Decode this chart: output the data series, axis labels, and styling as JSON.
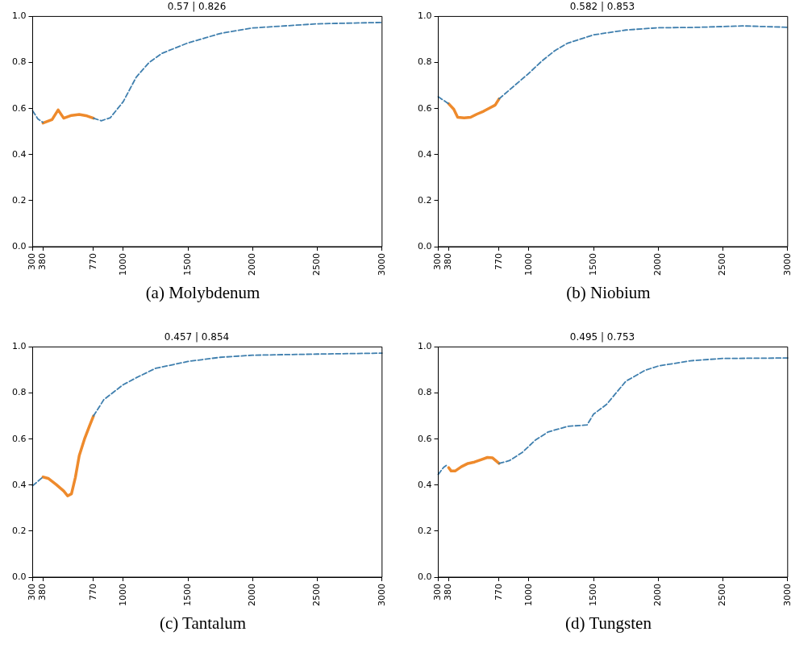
{
  "chart_data": [
    {
      "type": "line",
      "title": "0.57 | 0.826",
      "annotations": [
        "(a) Molybdenum"
      ],
      "xlim": [
        300,
        3000
      ],
      "xticks": [
        300,
        380,
        770,
        1000,
        1500,
        2000,
        2500,
        3000
      ],
      "ylim": [
        0,
        1
      ],
      "yticks": [
        {
          "value": 0,
          "label": "0.0"
        },
        {
          "value": 0.2,
          "label": "0.2"
        },
        {
          "value": 0.4,
          "label": "0.4"
        },
        {
          "value": 0.6,
          "label": "0.6"
        },
        {
          "value": 0.8,
          "label": "0.8"
        },
        {
          "value": 1,
          "label": "1.0"
        }
      ],
      "series": [
        {
          "color": "#3f7fae",
          "line_style": "dashed",
          "x": [
            300,
            340,
            380,
            575,
            770,
            830,
            900,
            1000,
            1100,
            1200,
            1300,
            1500,
            1750,
            2000,
            2500,
            3000
          ],
          "values": [
            0.59,
            0.555,
            0.54,
            null,
            0.558,
            0.547,
            0.56,
            0.63,
            0.736,
            0.8,
            0.84,
            0.885,
            0.926,
            0.95,
            0.968,
            0.974
          ]
        },
        {
          "color": "#ee8a2c",
          "line_style": "solid",
          "x": [
            380,
            450,
            497,
            540,
            600,
            660,
            720,
            770
          ],
          "values": [
            0.537,
            0.552,
            0.594,
            0.558,
            0.57,
            0.574,
            0.568,
            0.558
          ]
        }
      ]
    },
    {
      "type": "line",
      "title": "0.582 | 0.853",
      "annotations": [
        "(b) Niobium"
      ],
      "xlim": [
        300,
        3000
      ],
      "xticks": [
        300,
        380,
        770,
        1000,
        1500,
        2000,
        2500,
        3000
      ],
      "ylim": [
        0,
        1
      ],
      "yticks": [
        {
          "value": 0,
          "label": "0.0"
        },
        {
          "value": 0.2,
          "label": "0.2"
        },
        {
          "value": 0.4,
          "label": "0.4"
        },
        {
          "value": 0.6,
          "label": "0.6"
        },
        {
          "value": 0.8,
          "label": "0.8"
        },
        {
          "value": 1,
          "label": "1.0"
        }
      ],
      "series": [
        {
          "color": "#3f7fae",
          "line_style": "dashed",
          "x": [
            300,
            380,
            575,
            770,
            1000,
            1100,
            1200,
            1300,
            1500,
            1750,
            2000,
            2250,
            2500,
            2650,
            3000
          ],
          "values": [
            0.651,
            0.621,
            null,
            0.642,
            0.753,
            0.806,
            0.851,
            0.884,
            0.92,
            0.941,
            0.951,
            0.952,
            0.956,
            0.959,
            0.953
          ]
        },
        {
          "color": "#ee8a2c",
          "line_style": "solid",
          "x": [
            380,
            420,
            450,
            500,
            550,
            600,
            650,
            700,
            740,
            770
          ],
          "values": [
            0.621,
            0.597,
            0.562,
            0.559,
            0.562,
            0.576,
            0.588,
            0.603,
            0.615,
            0.642
          ]
        }
      ]
    },
    {
      "type": "line",
      "title": "0.457 | 0.854",
      "annotations": [
        "(c) Tantalum"
      ],
      "xlim": [
        300,
        3000
      ],
      "xticks": [
        300,
        380,
        770,
        1000,
        1500,
        2000,
        2500,
        3000
      ],
      "ylim": [
        0,
        1
      ],
      "yticks": [
        {
          "value": 0,
          "label": "0.0"
        },
        {
          "value": 0.2,
          "label": "0.2"
        },
        {
          "value": 0.4,
          "label": "0.4"
        },
        {
          "value": 0.6,
          "label": "0.6"
        },
        {
          "value": 0.8,
          "label": "0.8"
        },
        {
          "value": 1,
          "label": "1.0"
        }
      ],
      "series": [
        {
          "color": "#3f7fae",
          "line_style": "dashed",
          "x": [
            300,
            380,
            575,
            770,
            850,
            1000,
            1100,
            1250,
            1500,
            1750,
            2000,
            2500,
            3000
          ],
          "values": [
            0.397,
            0.435,
            null,
            0.7,
            0.771,
            0.836,
            0.866,
            0.907,
            0.937,
            0.955,
            0.964,
            0.969,
            0.973
          ]
        },
        {
          "color": "#ee8a2c",
          "line_style": "solid",
          "x": [
            380,
            420,
            480,
            540,
            570,
            600,
            630,
            660,
            700,
            740,
            770
          ],
          "values": [
            0.435,
            0.429,
            0.403,
            0.374,
            0.353,
            0.362,
            0.433,
            0.528,
            0.599,
            0.658,
            0.7
          ]
        }
      ]
    },
    {
      "type": "line",
      "title": "0.495 | 0.753",
      "annotations": [
        "(d) Tungsten"
      ],
      "xlim": [
        300,
        3000
      ],
      "xticks": [
        300,
        380,
        770,
        1000,
        1500,
        2000,
        2500,
        3000
      ],
      "ylim": [
        0,
        1
      ],
      "yticks": [
        {
          "value": 0,
          "label": "0.0"
        },
        {
          "value": 0.2,
          "label": "0.2"
        },
        {
          "value": 0.4,
          "label": "0.4"
        },
        {
          "value": 0.6,
          "label": "0.6"
        },
        {
          "value": 0.8,
          "label": "0.8"
        },
        {
          "value": 1,
          "label": "1.0"
        }
      ],
      "series": [
        {
          "color": "#3f7fae",
          "line_style": "dashed",
          "x": [
            300,
            340,
            370,
            575,
            770,
            850,
            950,
            1050,
            1150,
            1300,
            1450,
            1500,
            1600,
            1750,
            1900,
            2000,
            2250,
            2500,
            3000
          ],
          "values": [
            0.446,
            0.476,
            0.488,
            null,
            0.494,
            0.506,
            0.542,
            0.595,
            0.631,
            0.655,
            0.661,
            0.708,
            0.75,
            0.851,
            0.899,
            0.917,
            0.94,
            0.95,
            0.952
          ]
        },
        {
          "color": "#ee8a2c",
          "line_style": "solid",
          "x": [
            380,
            400,
            430,
            480,
            530,
            580,
            630,
            680,
            720,
            770
          ],
          "values": [
            0.476,
            0.461,
            0.461,
            0.48,
            0.494,
            0.5,
            0.51,
            0.52,
            0.518,
            0.494
          ]
        }
      ]
    }
  ]
}
